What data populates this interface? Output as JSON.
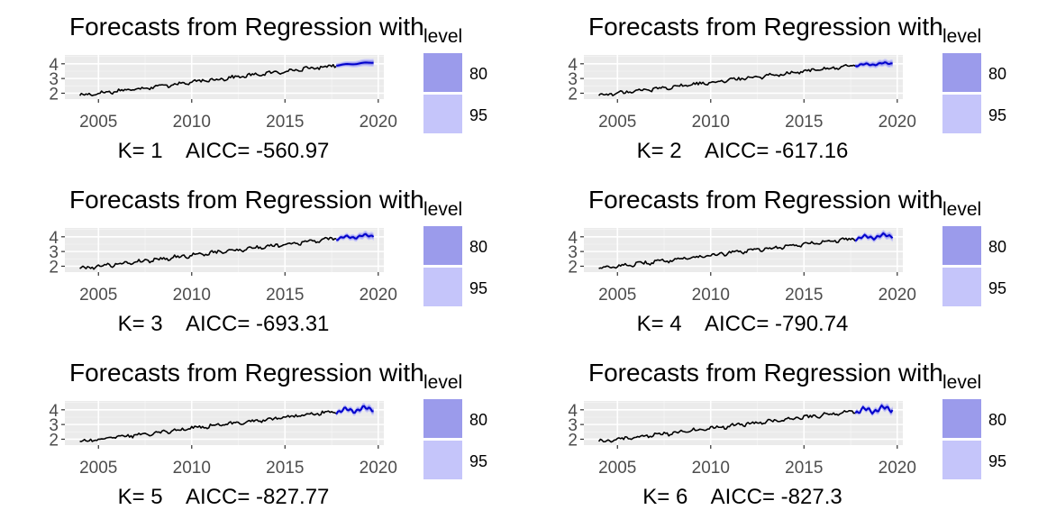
{
  "colors": {
    "panel_bg": "#EBEBEB",
    "grid_major": "#FFFFFF",
    "series_line": "#000000",
    "forecast_line": "#0000CC",
    "band_80": "#9B9BEB",
    "band_95": "#C5C5FA",
    "tick_text": "#4D4D4D"
  },
  "chart_data": [
    {
      "type": "line",
      "title": "Forecasts from Regression with",
      "caption": "K= 1    AICC= -560.97",
      "x_ticks": [
        2005,
        2010,
        2015,
        2020
      ],
      "y_ticks": [
        2,
        3,
        4
      ],
      "xlim": [
        2003.2,
        2020.3
      ],
      "ylim": [
        1.6,
        4.6
      ],
      "legend": {
        "title": "level",
        "position": "right",
        "entries": [
          {
            "label": "80",
            "color": "#9B9BEB"
          },
          {
            "label": "95",
            "color": "#C5C5FA"
          }
        ]
      },
      "series": [
        {
          "name": "",
          "kind": "history",
          "start": 2004.0,
          "end": 2017.75,
          "start_value": 1.85,
          "end_value": 3.9
        },
        {
          "name": "",
          "kind": "forecast",
          "start": 2017.75,
          "end": 2019.75,
          "start_value": 3.9,
          "end_value": 4.1
        }
      ]
    },
    {
      "type": "line",
      "title": "Forecasts from Regression with",
      "caption": "K= 2    AICC= -617.16",
      "x_ticks": [
        2005,
        2010,
        2015,
        2020
      ],
      "y_ticks": [
        2,
        3,
        4
      ],
      "xlim": [
        2003.2,
        2020.3
      ],
      "ylim": [
        1.6,
        4.6
      ],
      "legend": {
        "title": "level",
        "position": "right",
        "entries": [
          {
            "label": "80",
            "color": "#9B9BEB"
          },
          {
            "label": "95",
            "color": "#C5C5FA"
          }
        ]
      },
      "series": [
        {
          "name": "",
          "kind": "history",
          "start": 2004.0,
          "end": 2017.75,
          "start_value": 1.85,
          "end_value": 3.9
        },
        {
          "name": "",
          "kind": "forecast",
          "start": 2017.75,
          "end": 2019.75,
          "start_value": 3.9,
          "end_value": 4.05
        }
      ]
    },
    {
      "type": "line",
      "title": "Forecasts from Regression with",
      "caption": "K= 3    AICC= -693.31",
      "x_ticks": [
        2005,
        2010,
        2015,
        2020
      ],
      "y_ticks": [
        2,
        3,
        4
      ],
      "xlim": [
        2003.2,
        2020.3
      ],
      "ylim": [
        1.6,
        4.6
      ],
      "legend": {
        "title": "level",
        "position": "right",
        "entries": [
          {
            "label": "80",
            "color": "#9B9BEB"
          },
          {
            "label": "95",
            "color": "#C5C5FA"
          }
        ]
      },
      "series": [
        {
          "name": "",
          "kind": "history",
          "start": 2004.0,
          "end": 2017.75,
          "start_value": 1.85,
          "end_value": 3.9
        },
        {
          "name": "",
          "kind": "forecast",
          "start": 2017.75,
          "end": 2019.75,
          "start_value": 3.9,
          "end_value": 4.1
        }
      ]
    },
    {
      "type": "line",
      "title": "Forecasts from Regression with",
      "caption": "K= 4    AICC= -790.74",
      "x_ticks": [
        2005,
        2010,
        2015,
        2020
      ],
      "y_ticks": [
        2,
        3,
        4
      ],
      "xlim": [
        2003.2,
        2020.3
      ],
      "ylim": [
        1.6,
        4.6
      ],
      "legend": {
        "title": "level",
        "position": "right",
        "entries": [
          {
            "label": "80",
            "color": "#9B9BEB"
          },
          {
            "label": "95",
            "color": "#C5C5FA"
          }
        ]
      },
      "series": [
        {
          "name": "",
          "kind": "history",
          "start": 2004.0,
          "end": 2017.75,
          "start_value": 1.85,
          "end_value": 3.9
        },
        {
          "name": "",
          "kind": "forecast",
          "start": 2017.75,
          "end": 2019.75,
          "start_value": 3.9,
          "end_value": 4.1
        }
      ]
    },
    {
      "type": "line",
      "title": "Forecasts from Regression with",
      "caption": "K= 5    AICC= -827.77",
      "x_ticks": [
        2005,
        2010,
        2015,
        2020
      ],
      "y_ticks": [
        2,
        3,
        4
      ],
      "xlim": [
        2003.2,
        2020.3
      ],
      "ylim": [
        1.6,
        4.6
      ],
      "legend": {
        "title": "level",
        "position": "right",
        "entries": [
          {
            "label": "80",
            "color": "#9B9BEB"
          },
          {
            "label": "95",
            "color": "#C5C5FA"
          }
        ]
      },
      "series": [
        {
          "name": "",
          "kind": "history",
          "start": 2004.0,
          "end": 2017.75,
          "start_value": 1.85,
          "end_value": 3.9
        },
        {
          "name": "",
          "kind": "forecast",
          "start": 2017.75,
          "end": 2019.75,
          "start_value": 3.9,
          "end_value": 4.1
        }
      ]
    },
    {
      "type": "line",
      "title": "Forecasts from Regression with",
      "caption": "K= 6    AICC= -827.3",
      "x_ticks": [
        2005,
        2010,
        2015,
        2020
      ],
      "y_ticks": [
        2,
        3,
        4
      ],
      "xlim": [
        2003.2,
        2020.3
      ],
      "ylim": [
        1.6,
        4.6
      ],
      "legend": {
        "title": "level",
        "position": "right",
        "entries": [
          {
            "label": "80",
            "color": "#9B9BEB"
          },
          {
            "label": "95",
            "color": "#C5C5FA"
          }
        ]
      },
      "series": [
        {
          "name": "",
          "kind": "history",
          "start": 2004.0,
          "end": 2017.75,
          "start_value": 1.85,
          "end_value": 3.9
        },
        {
          "name": "",
          "kind": "forecast",
          "start": 2017.75,
          "end": 2019.75,
          "start_value": 3.9,
          "end_value": 4.1
        }
      ]
    }
  ]
}
